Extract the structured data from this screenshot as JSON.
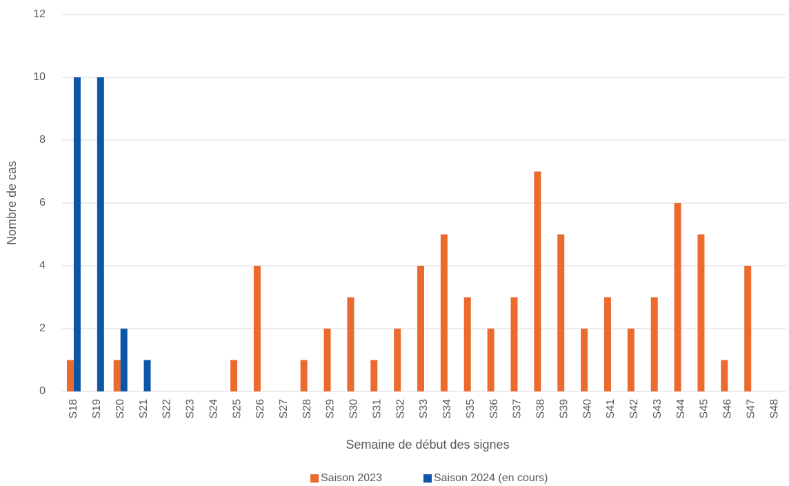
{
  "chart_data": {
    "type": "bar",
    "xlabel": "Semaine de début des signes",
    "ylabel": "Nombre de cas",
    "categories": [
      "S18",
      "S19",
      "S20",
      "S21",
      "S22",
      "S23",
      "S24",
      "S25",
      "S26",
      "S27",
      "S28",
      "S29",
      "S30",
      "S31",
      "S32",
      "S33",
      "S34",
      "S35",
      "S36",
      "S37",
      "S38",
      "S39",
      "S40",
      "S41",
      "S42",
      "S43",
      "S44",
      "S45",
      "S46",
      "S47",
      "S48"
    ],
    "series": [
      {
        "name": "Saison 2023",
        "color": "#ed6a2f",
        "values": [
          1,
          0,
          1,
          0,
          0,
          0,
          0,
          1,
          4,
          0,
          1,
          2,
          3,
          1,
          2,
          4,
          5,
          3,
          2,
          3,
          7,
          5,
          2,
          3,
          2,
          3,
          6,
          5,
          1,
          4,
          null
        ]
      },
      {
        "name": "Saison 2024 (en cours)",
        "color": "#0d56a6",
        "values": [
          10,
          10,
          2,
          1,
          null,
          null,
          null,
          null,
          null,
          null,
          null,
          null,
          null,
          null,
          null,
          null,
          null,
          null,
          null,
          null,
          null,
          null,
          null,
          null,
          null,
          null,
          null,
          null,
          null,
          null,
          null
        ]
      }
    ],
    "ylim": [
      0,
      12
    ],
    "yticks": [
      0,
      2,
      4,
      6,
      8,
      10,
      12
    ],
    "grid": true,
    "legend": "bottom"
  }
}
